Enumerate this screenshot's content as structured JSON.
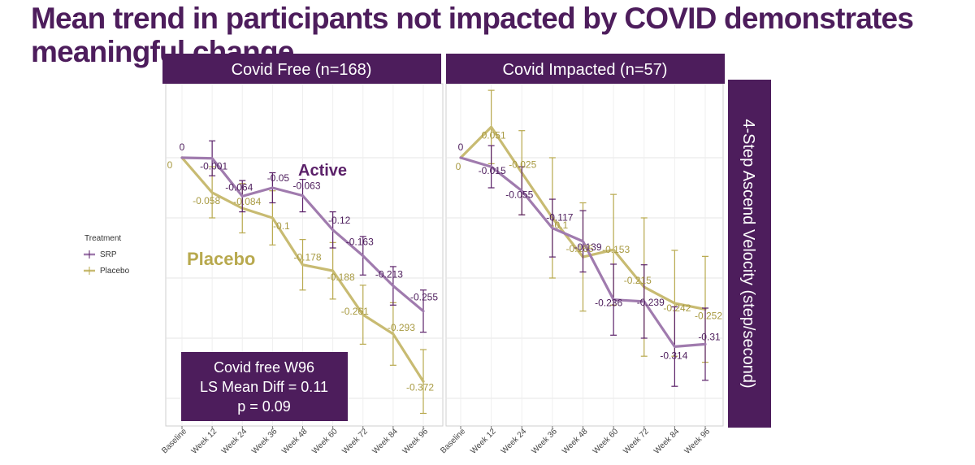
{
  "title": "Mean trend in participants not impacted by COVID demonstrates meaningful change",
  "colors": {
    "banner": "#4d1d5c",
    "srp_line": "#a07bae",
    "srp_error": "#5b2169",
    "srp_label": "#4d1d5c",
    "placebo_line": "#c8bb72",
    "placebo_error": "#b8a94e",
    "placebo_label": "#a89a42",
    "grid": "#e4e4e4"
  },
  "legend": {
    "title": "Treatment",
    "items": [
      {
        "label": "SRP",
        "series": "srp"
      },
      {
        "label": "Placebo",
        "series": "placebo"
      }
    ]
  },
  "annotations": {
    "active": "Active",
    "placebo": "Placebo"
  },
  "note_box": {
    "line1": "Covid free W96",
    "line2": "LS Mean Diff = 0.11",
    "line3": "p = 0.09"
  },
  "chart_data": {
    "type": "line",
    "ylabel": "4-Step Ascend Velocity (step/second)",
    "categories": [
      "Baseline",
      "Week 12",
      "Week 24",
      "Week 36",
      "Week 48",
      "Week 60",
      "Week 72",
      "Week 84",
      "Week 96"
    ],
    "ylim": [
      -0.44,
      0.12
    ],
    "y_grid": [
      0.0,
      -0.1,
      -0.2,
      -0.3,
      -0.4
    ],
    "panels": [
      {
        "title": "Covid Free (n=168)",
        "series": [
          {
            "name": "SRP",
            "key": "srp",
            "values": [
              0,
              -0.001,
              -0.064,
              -0.05,
              -0.063,
              -0.12,
              -0.163,
              -0.213,
              -0.255
            ],
            "labels": [
              "0",
              "-0.001",
              "-0.064",
              "-0.05",
              "-0.063",
              "-0.12",
              "-0.163",
              "-0.213",
              "-0.255"
            ],
            "err_low": [
              0,
              -0.03,
              -0.09,
              -0.075,
              -0.09,
              -0.15,
              -0.195,
              -0.245,
              -0.29
            ],
            "err_high": [
              0,
              0.028,
              -0.038,
              -0.025,
              -0.036,
              -0.09,
              -0.131,
              -0.181,
              -0.22
            ]
          },
          {
            "name": "Placebo",
            "key": "placebo",
            "values": [
              0,
              -0.058,
              -0.084,
              -0.1,
              -0.178,
              -0.188,
              -0.261,
              -0.293,
              -0.372
            ],
            "labels": [
              "0",
              "-0.058",
              "-0.084",
              "-0.1",
              "-0.178",
              "-0.188",
              "-0.261",
              "-0.293",
              "-0.372"
            ],
            "err_low": [
              0,
              -0.1,
              -0.125,
              -0.145,
              -0.22,
              -0.235,
              -0.31,
              -0.345,
              -0.425
            ],
            "err_high": [
              0,
              -0.015,
              -0.043,
              -0.055,
              -0.136,
              -0.141,
              -0.212,
              -0.241,
              -0.319
            ]
          }
        ]
      },
      {
        "title": "Covid Impacted (n=57)",
        "series": [
          {
            "name": "SRP",
            "key": "srp",
            "values": [
              0,
              -0.015,
              -0.055,
              -0.117,
              -0.139,
              -0.236,
              -0.239,
              -0.314,
              -0.31
            ],
            "labels": [
              "0",
              "-0.015",
              "-0.055",
              "-0.117",
              "-0.139",
              "-0.236",
              "-0.239",
              "-0.314",
              "-0.31"
            ],
            "err_low": [
              0,
              -0.05,
              -0.095,
              -0.165,
              -0.19,
              -0.295,
              -0.3,
              -0.38,
              -0.37
            ],
            "err_high": [
              0,
              0.02,
              -0.015,
              -0.069,
              -0.088,
              -0.177,
              -0.178,
              -0.248,
              -0.25
            ]
          },
          {
            "name": "Placebo",
            "key": "placebo",
            "values": [
              0,
              0.051,
              -0.025,
              -0.1,
              -0.165,
              -0.153,
              -0.215,
              -0.242,
              -0.252
            ],
            "labels": [
              "0",
              "0.051",
              "-0.025",
              "-0.1",
              "-0.165",
              "-0.153",
              "-0.215",
              "-0.242",
              "-0.252"
            ],
            "err_low": [
              0,
              -0.01,
              -0.095,
              -0.2,
              -0.255,
              -0.245,
              -0.33,
              -0.33,
              -0.34
            ],
            "err_high": [
              0,
              0.112,
              0.045,
              0.0,
              -0.075,
              -0.061,
              -0.1,
              -0.154,
              -0.164
            ]
          }
        ]
      }
    ]
  }
}
